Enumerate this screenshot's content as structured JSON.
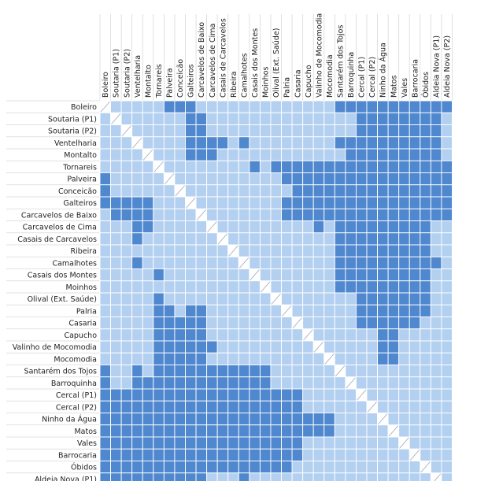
{
  "chart_data": {
    "type": "heatmap",
    "title": "",
    "labels": [
      "Boleiro",
      "Soutaria (P1)",
      "Soutaria (P2)",
      "Ventelharia",
      "Montalto",
      "Tornareis",
      "Palveira",
      "Conceicao",
      "Galteiros",
      "Carcavelos de Baixo",
      "Carcavelos de Cima",
      "Casais de Carcavelos",
      "Ribeira",
      "Camalhotes",
      "Casais dos Montes",
      "Moinhos",
      "Olival (Ext. Saude)",
      "Palria",
      "Casaria",
      "Capucho",
      "Valinho de Mocomodia",
      "Mocomodia",
      "Santarem dos Tojos",
      "Barroquinha",
      "Cercal (P1)",
      "Cercal (P2)",
      "Ninho da Agua",
      "Matos",
      "Vales",
      "Barrocaria",
      "Obidos",
      "Aldeia Nova (P1)",
      "Aldeia Nova (P2)"
    ],
    "display_labels": [
      "Boleiro",
      "Soutaria (P1)",
      "Soutaria (P2)",
      "Ventelharia",
      "Montalto",
      "Tornareis",
      "Palveira",
      "Conceicão",
      "Galteiros",
      "Carcavelos de Baixo",
      "Carcavelos de Cima",
      "Casais de Carcavelos",
      "Ribeira",
      "Camalhotes",
      "Casais dos Montes",
      "Moinhos",
      "Olival (Ext. Saúde)",
      "Palria",
      "Casaria",
      "Capucho",
      "Valinho de Mocomodia",
      "Mocomodia",
      "Santarém dos Tojos",
      "Barroquinha",
      "Cercal (P1)",
      "Cercal (P2)",
      "Ninho da Água",
      "Matos",
      "Vales",
      "Barrocaria",
      "Óbidos",
      "Aldeia Nova (P1)",
      "Aldeia Nova (P2)"
    ],
    "column_labels_rotated": true,
    "legend": "none",
    "colors": {
      "high": "#4f88cf",
      "low": "#b4d0f1",
      "diagonal": "#ffffff",
      "grid": "#ffffff",
      "diag_stroke": "#9aa8b8"
    },
    "upper_dark": [
      [
        6,
        7,
        8,
        22,
        23,
        24,
        25,
        26,
        27,
        28,
        29,
        30,
        31,
        32
      ],
      [
        8,
        9,
        24,
        25,
        26,
        27,
        28,
        29,
        30,
        31
      ],
      [
        8,
        9,
        24,
        25,
        26,
        27,
        28,
        29,
        30,
        31
      ],
      [
        8,
        9,
        10,
        11,
        13,
        22,
        23,
        24,
        25,
        26,
        27,
        28,
        29,
        30,
        31
      ],
      [
        8,
        9,
        10,
        23,
        24,
        25,
        26,
        27,
        28,
        29,
        30,
        31
      ],
      [
        14,
        16,
        17,
        18,
        19,
        20,
        21,
        22,
        23,
        24,
        25,
        26,
        27,
        28,
        29,
        30,
        31,
        32
      ],
      [
        17,
        18,
        19,
        20,
        21,
        22,
        23,
        24,
        25,
        26,
        27,
        28,
        29,
        30,
        31,
        32
      ],
      [
        18,
        19,
        20,
        21,
        22,
        23,
        24,
        25,
        26,
        27,
        28,
        29,
        30,
        31,
        32
      ],
      [
        17,
        18,
        19,
        20,
        21,
        22,
        23,
        24,
        25,
        26,
        27,
        28,
        29,
        30,
        31,
        32
      ],
      [
        17,
        18,
        19,
        20,
        21,
        22,
        23,
        24,
        25,
        26,
        27,
        28,
        29,
        30,
        31,
        32
      ],
      [
        20,
        22,
        23,
        24,
        25,
        26,
        27,
        28,
        29,
        30
      ],
      [
        22,
        23,
        24,
        25,
        26,
        27,
        28,
        29,
        30
      ],
      [
        22,
        23,
        24,
        25,
        26,
        27,
        28,
        29,
        30
      ],
      [
        22,
        23,
        24,
        25,
        26,
        27,
        28,
        29,
        30,
        31
      ],
      [
        22,
        23,
        24,
        25,
        26,
        27,
        28,
        29,
        30
      ],
      [
        22,
        23,
        24,
        25,
        26,
        27,
        28,
        29,
        30
      ],
      [
        24,
        25,
        26,
        27,
        28,
        29,
        30
      ],
      [
        24,
        25,
        26,
        27,
        28,
        29,
        30
      ],
      [
        24,
        25,
        26,
        27,
        28,
        29
      ],
      [
        26,
        27
      ],
      [
        26,
        27
      ],
      [
        26,
        27
      ],
      [],
      [],
      [],
      [],
      [],
      [],
      [],
      [],
      [],
      [],
      []
    ]
  }
}
